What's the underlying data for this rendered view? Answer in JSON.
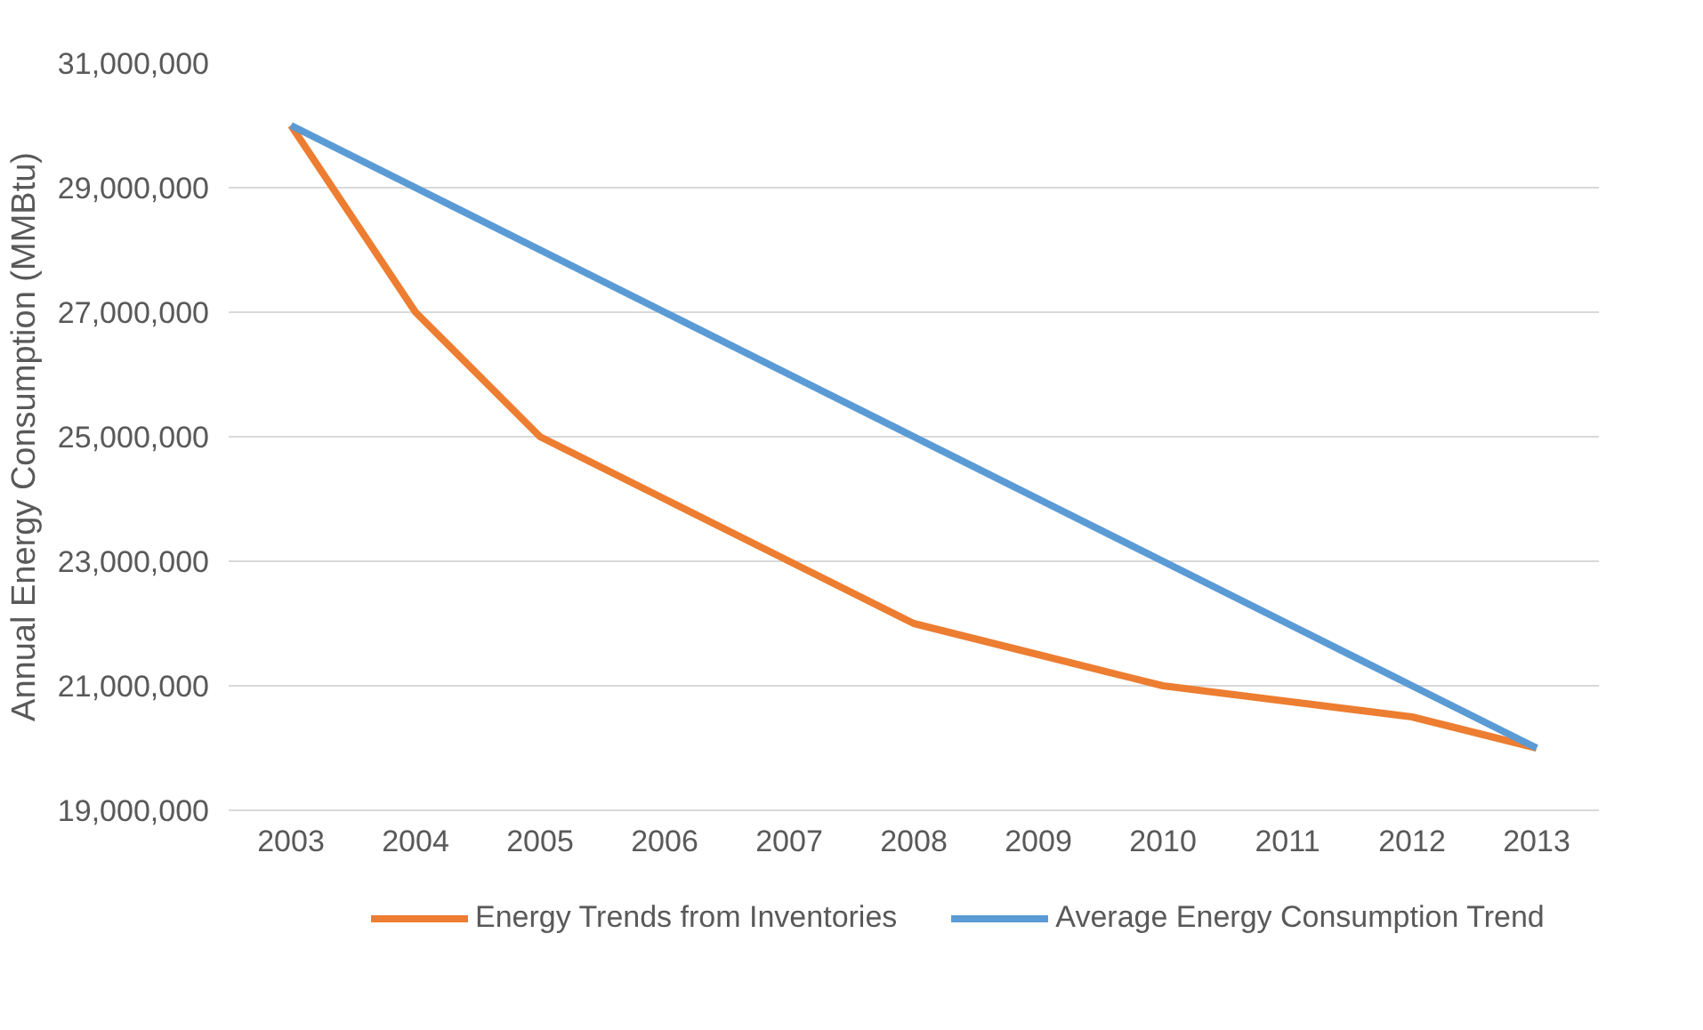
{
  "chart_data": {
    "type": "line",
    "ylabel": "Annual Energy Consumption (MMBtu)",
    "categories": [
      "2003",
      "2004",
      "2005",
      "2006",
      "2007",
      "2008",
      "2009",
      "2010",
      "2011",
      "2012",
      "2013"
    ],
    "series": [
      {
        "name": "Energy Trends from Inventories",
        "color": "#ed7d31",
        "values": [
          30000000,
          27000000,
          25000000,
          24000000,
          23000000,
          22000000,
          21500000,
          21000000,
          20750000,
          20500000,
          20000000
        ]
      },
      {
        "name": "Average Energy Consumption Trend",
        "color": "#5b9bd5",
        "values": [
          30000000,
          29000000,
          28000000,
          27000000,
          26000000,
          25000000,
          24000000,
          23000000,
          22000000,
          21000000,
          20000000
        ]
      }
    ],
    "ylim": [
      19000000,
      31000000
    ],
    "yticks": [
      {
        "value": 19000000,
        "label": "19,000,000"
      },
      {
        "value": 21000000,
        "label": "21,000,000"
      },
      {
        "value": 23000000,
        "label": "23,000,000"
      },
      {
        "value": 25000000,
        "label": "25,000,000"
      },
      {
        "value": 27000000,
        "label": "27,000,000"
      },
      {
        "value": 29000000,
        "label": "29,000,000"
      },
      {
        "value": 31000000,
        "label": "31,000,000"
      }
    ],
    "grid": "y",
    "legend": "bottom",
    "marker": "none",
    "line_style": "solid"
  }
}
